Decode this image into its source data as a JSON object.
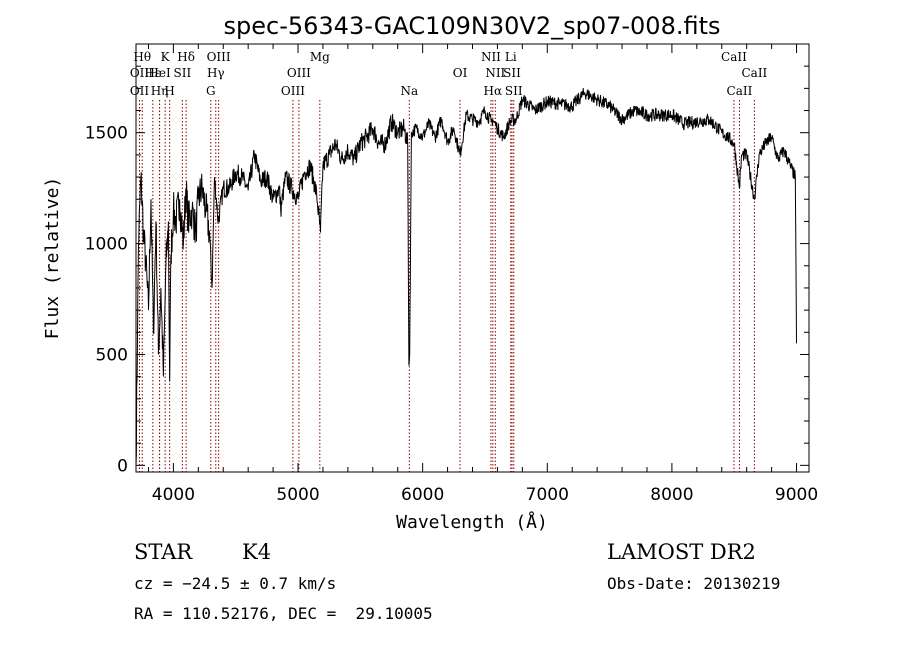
{
  "chart_data": {
    "type": "line",
    "title": "spec-56343-GAC109N30V2_sp07-008.fits",
    "xlabel": "Wavelength (Å)",
    "ylabel": "Flux (relative)",
    "xlim": [
      3700,
      9100
    ],
    "ylim": [
      -30,
      1900
    ],
    "x_ticks": [
      4000,
      5000,
      6000,
      7000,
      8000,
      9000
    ],
    "y_ticks": [
      0,
      500,
      1000,
      1500
    ],
    "grid": false,
    "line_color": "#000000",
    "marker_color": "#8b0000",
    "x": [
      3700,
      3720,
      3740,
      3760,
      3780,
      3800,
      3820,
      3840,
      3860,
      3880,
      3900,
      3920,
      3940,
      3960,
      3970,
      3980,
      4000,
      4020,
      4050,
      4080,
      4100,
      4120,
      4150,
      4180,
      4200,
      4230,
      4260,
      4290,
      4310,
      4330,
      4360,
      4400,
      4450,
      4500,
      4550,
      4600,
      4650,
      4700,
      4750,
      4800,
      4850,
      4861,
      4900,
      4950,
      5000,
      5050,
      5100,
      5150,
      5180,
      5200,
      5250,
      5300,
      5350,
      5400,
      5450,
      5500,
      5550,
      5600,
      5650,
      5700,
      5750,
      5800,
      5850,
      5880,
      5890,
      5896,
      5910,
      5950,
      6000,
      6050,
      6100,
      6150,
      6200,
      6250,
      6300,
      6350,
      6400,
      6450,
      6500,
      6550,
      6563,
      6600,
      6650,
      6700,
      6750,
      6800,
      6900,
      7000,
      7100,
      7200,
      7300,
      7400,
      7500,
      7600,
      7700,
      7800,
      7900,
      8000,
      8100,
      8200,
      8300,
      8400,
      8450,
      8500,
      8542,
      8560,
      8600,
      8662,
      8700,
      8750,
      8800,
      8850,
      8900,
      8950,
      8990,
      9000
    ],
    "values": [
      0,
      1000,
      1300,
      1050,
      900,
      700,
      1200,
      600,
      1100,
      500,
      800,
      400,
      900,
      1100,
      380,
      950,
      1150,
      1100,
      1200,
      1000,
      1250,
      1100,
      1150,
      1050,
      1200,
      1250,
      1150,
      1050,
      800,
      1300,
      1100,
      1250,
      1250,
      1320,
      1300,
      1240,
      1400,
      1280,
      1300,
      1200,
      1250,
      1150,
      1300,
      1250,
      1200,
      1320,
      1350,
      1220,
      1050,
      1350,
      1400,
      1450,
      1380,
      1420,
      1380,
      1450,
      1480,
      1520,
      1450,
      1450,
      1550,
      1500,
      1520,
      1450,
      450,
      500,
      1500,
      1520,
      1480,
      1540,
      1480,
      1560,
      1460,
      1520,
      1400,
      1580,
      1560,
      1550,
      1600,
      1550,
      1560,
      1520,
      1480,
      1550,
      1560,
      1650,
      1600,
      1640,
      1630,
      1620,
      1680,
      1650,
      1620,
      1560,
      1600,
      1580,
      1580,
      1580,
      1540,
      1550,
      1560,
      1500,
      1480,
      1450,
      1250,
      1400,
      1400,
      1200,
      1400,
      1450,
      1480,
      1380,
      1420,
      1350,
      1300,
      550
    ],
    "lines": [
      {
        "x": 3750,
        "label": "Hθ",
        "row": 0
      },
      {
        "x": 3728,
        "label": "OII",
        "row": 1
      },
      {
        "x": 3728,
        "label": "OII",
        "row": 2
      },
      {
        "x": 3835,
        "label": "Hε",
        "row": 1
      },
      {
        "x": 3889,
        "label": "HeI",
        "row": 1
      },
      {
        "x": 3934,
        "label": "K",
        "row": 0
      },
      {
        "x": 3889,
        "label": "Hη",
        "row": 2
      },
      {
        "x": 3970,
        "label": "H",
        "row": 2
      },
      {
        "x": 4072,
        "label": "SII",
        "row": 1
      },
      {
        "x": 4102,
        "label": "Hδ",
        "row": 0
      },
      {
        "x": 4300,
        "label": "G",
        "row": 2
      },
      {
        "x": 4340,
        "label": "Hγ",
        "row": 1
      },
      {
        "x": 4363,
        "label": "OIII",
        "row": 0
      },
      {
        "x": 4959,
        "label": "OIII",
        "row": 2
      },
      {
        "x": 5007,
        "label": "OIII",
        "row": 1
      },
      {
        "x": 5175,
        "label": "Mg",
        "row": 0
      },
      {
        "x": 5893,
        "label": "Na",
        "row": 2
      },
      {
        "x": 6300,
        "label": "OI",
        "row": 1
      },
      {
        "x": 6548,
        "label": "NII",
        "row": 0
      },
      {
        "x": 6583,
        "label": "NII",
        "row": 1
      },
      {
        "x": 6563,
        "label": "Hα",
        "row": 2
      },
      {
        "x": 6707,
        "label": "Li",
        "row": 0
      },
      {
        "x": 6717,
        "label": "SII",
        "row": 1
      },
      {
        "x": 6731,
        "label": "SII",
        "row": 2
      },
      {
        "x": 8498,
        "label": "CaII",
        "row": 0
      },
      {
        "x": 8542,
        "label": "CaII",
        "row": 2
      },
      {
        "x": 8662,
        "label": "CaII",
        "row": 1
      }
    ]
  },
  "info": {
    "object_class": "STAR",
    "subclass": "K4",
    "survey": "LAMOST DR2",
    "cz": "cz = −24.5 ± 0.7 km/s",
    "obs_date": "Obs-Date: 20130219",
    "radec": "RA = 110.52176, DEC =  29.10005"
  }
}
